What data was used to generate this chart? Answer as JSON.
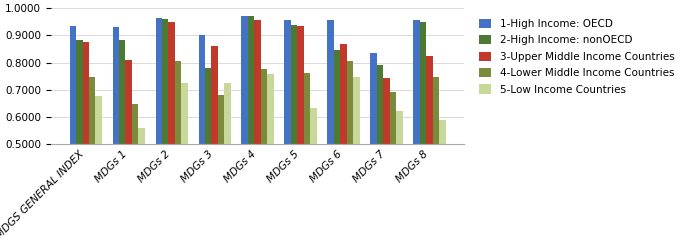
{
  "categories": [
    "MDGS GENERAL INDEX",
    "MDGs 1",
    "MDGs 2",
    "MDGs 3",
    "MDGs 4",
    "MDGs 5",
    "MDGs 6",
    "MDGs 7",
    "MDGs 8"
  ],
  "series": [
    {
      "label": "1-High Income: OECD",
      "color": "#4472C4",
      "values": [
        0.935,
        0.93,
        0.963,
        0.9,
        0.97,
        0.958,
        0.958,
        0.835,
        0.955
      ]
    },
    {
      "label": "2-High Income: nonOECD",
      "color": "#4C7A33",
      "values": [
        0.885,
        0.883,
        0.96,
        0.78,
        0.97,
        0.94,
        0.845,
        0.79,
        0.95
      ]
    },
    {
      "label": "3-Upper Middle Income Countries",
      "color": "#C0392B",
      "values": [
        0.875,
        0.81,
        0.948,
        0.863,
        0.957,
        0.935,
        0.868,
        0.745,
        0.825
      ]
    },
    {
      "label": "4-Lower Middle Income Countries",
      "color": "#7A8B3C",
      "values": [
        0.748,
        0.65,
        0.808,
        0.68,
        0.778,
        0.762,
        0.805,
        0.692,
        0.748
      ]
    },
    {
      "label": "5-Low Income Countries",
      "color": "#C8D89A",
      "values": [
        0.678,
        0.56,
        0.725,
        0.725,
        0.758,
        0.635,
        0.748,
        0.622,
        0.59
      ]
    }
  ],
  "ylim": [
    0.5,
    1.0
  ],
  "yticks": [
    0.5,
    0.6,
    0.7,
    0.8,
    0.9,
    1.0
  ],
  "bar_width": 0.15,
  "figsize": [
    6.85,
    2.45
  ],
  "dpi": 100
}
